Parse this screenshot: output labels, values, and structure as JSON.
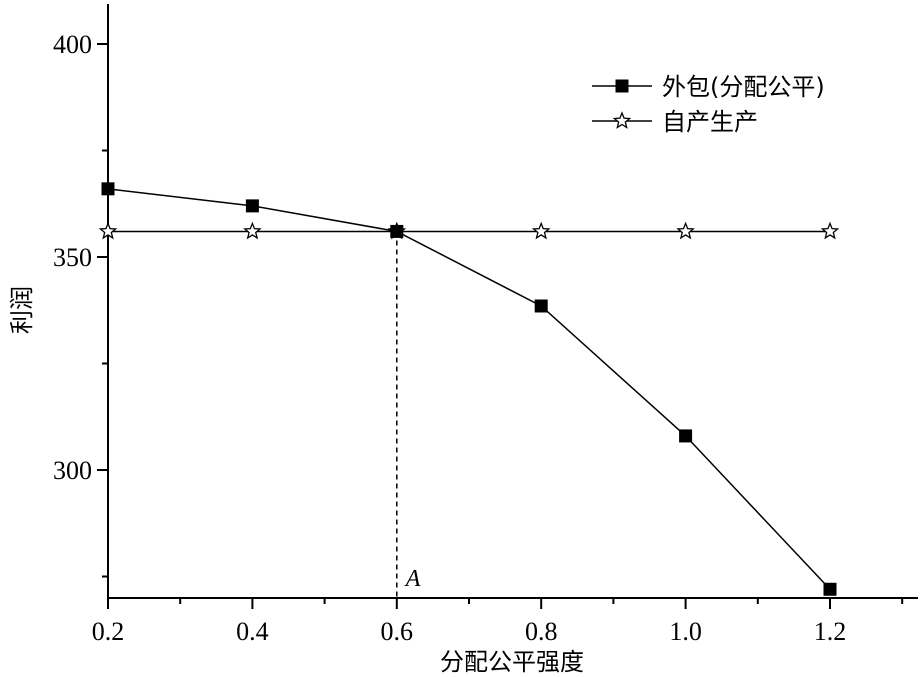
{
  "chart_data": {
    "type": "line",
    "title": "",
    "xlabel": "分配公平强度",
    "ylabel": "利润",
    "xlim": [
      0.2,
      1.33
    ],
    "ylim": [
      272,
      410
    ],
    "x_ticks": [
      0.2,
      0.4,
      0.6,
      0.8,
      1.0,
      1.2
    ],
    "x_tick_labels": [
      "0.2",
      "0.4",
      "0.6",
      "0.8",
      "1.0",
      "1.2"
    ],
    "y_ticks": [
      300,
      350,
      400
    ],
    "y_tick_labels": [
      "300",
      "350",
      "400"
    ],
    "grid": false,
    "legend_position": "top-right",
    "x": [
      0.2,
      0.4,
      0.6,
      0.8,
      1.0,
      1.2
    ],
    "series": [
      {
        "name": "外包(分配公平)",
        "marker": "square-filled",
        "values": [
          366,
          362,
          356,
          338.5,
          308,
          272
        ]
      },
      {
        "name": "自产生产",
        "marker": "star-hollow",
        "values": [
          356,
          356,
          356,
          356,
          356,
          356
        ]
      }
    ],
    "annotations": [
      {
        "text": "A",
        "x": 0.6,
        "style": "dashed vertical line to x-axis"
      }
    ]
  }
}
